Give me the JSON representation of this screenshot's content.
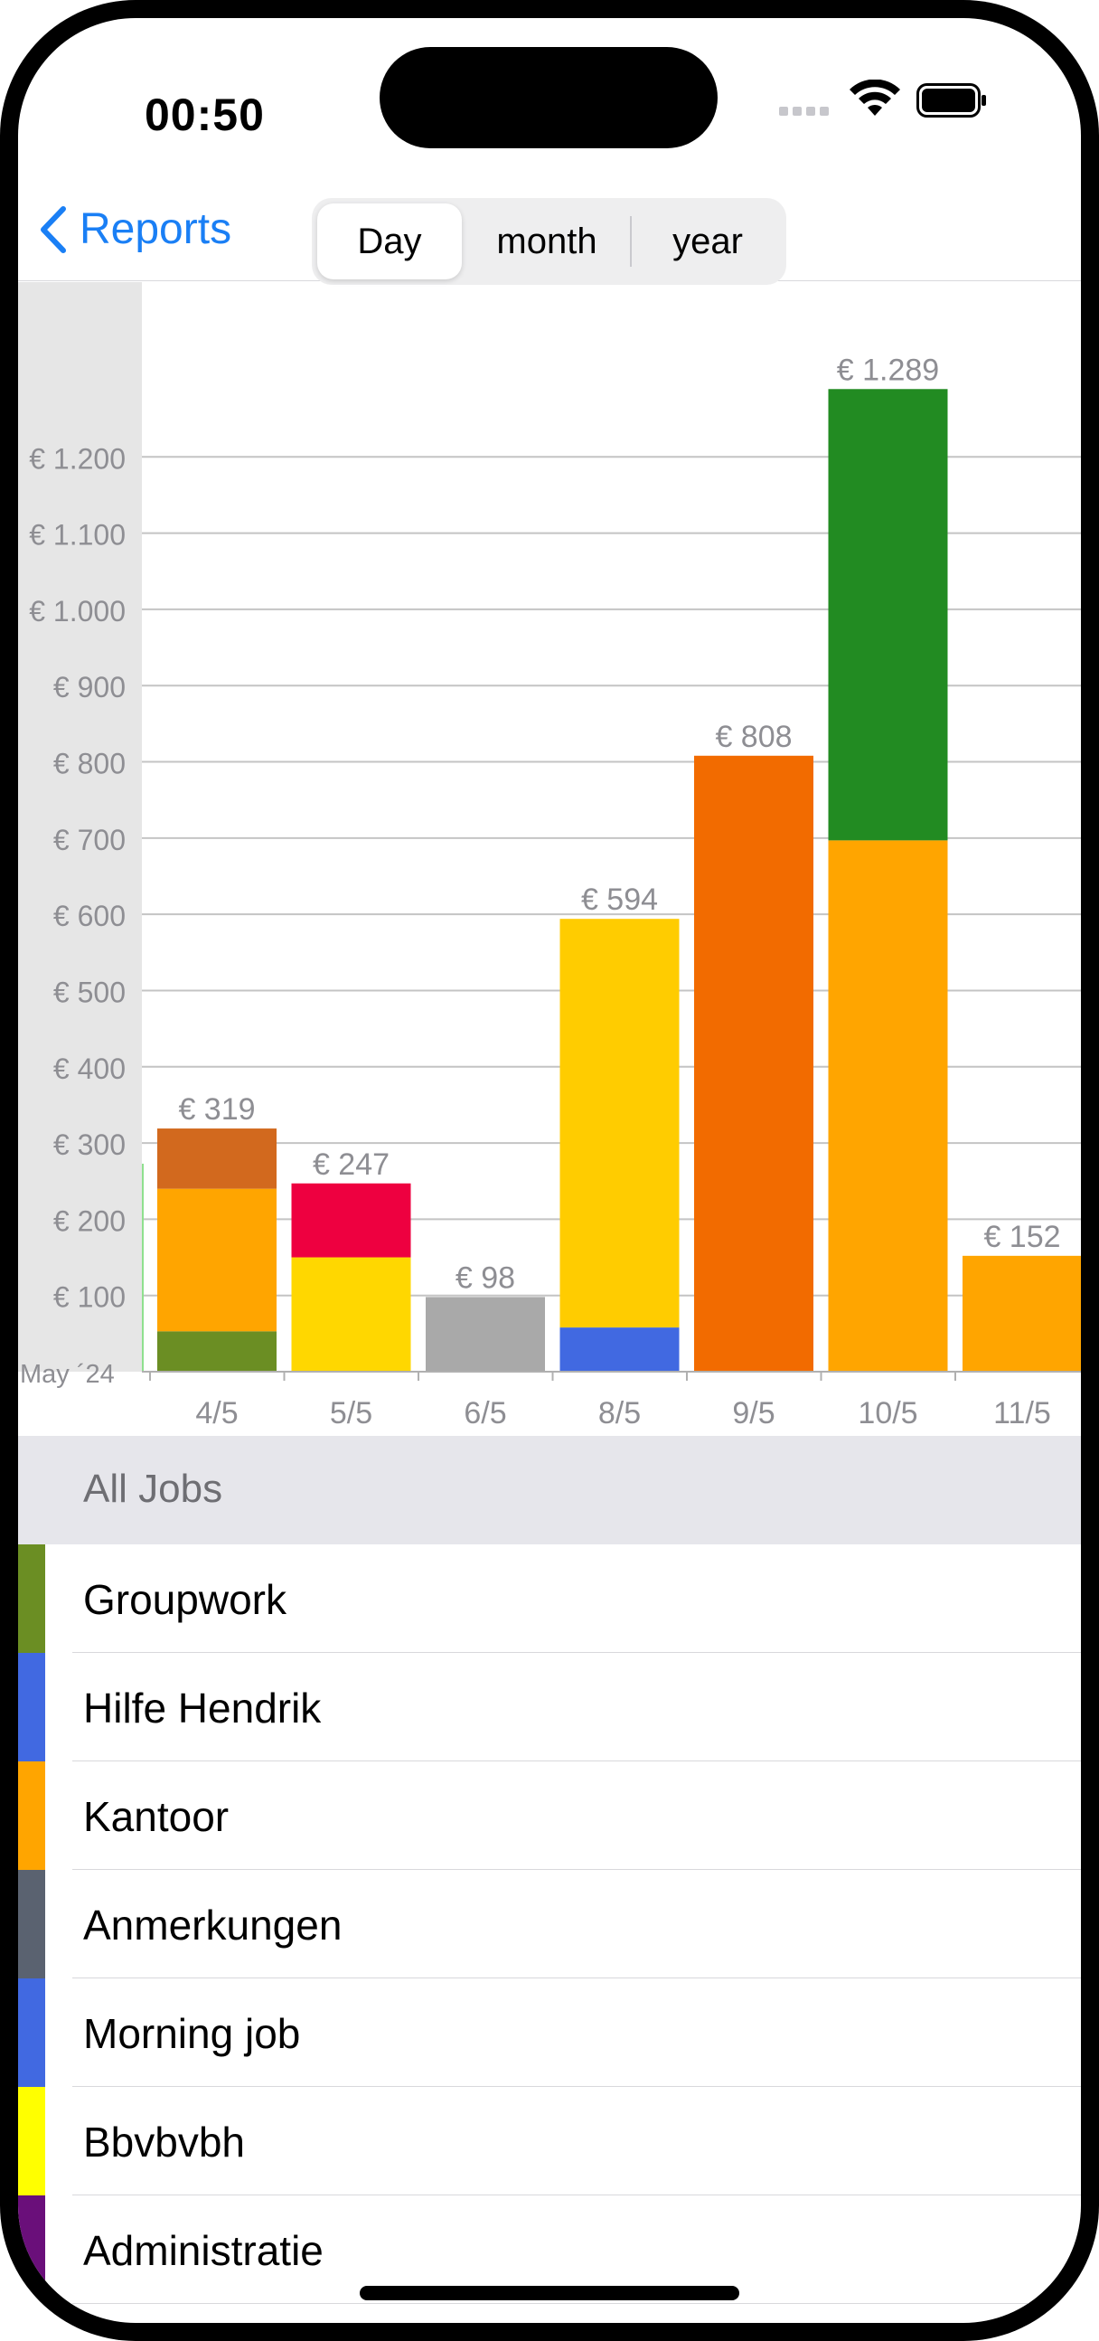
{
  "status_bar": {
    "time": "00:50"
  },
  "nav": {
    "back_label": "Reports",
    "segments": [
      {
        "label": "Day",
        "selected": true
      },
      {
        "label": "month",
        "selected": false
      },
      {
        "label": "year",
        "selected": false
      }
    ]
  },
  "chart_data": {
    "type": "bar",
    "stacked": true,
    "period_label": "May ´24",
    "y_tick_labels": [
      "€ 100",
      "€ 200",
      "€ 300",
      "€ 400",
      "€ 500",
      "€ 600",
      "€ 700",
      "€ 800",
      "€ 900",
      "€ 1.000",
      "€ 1.100",
      "€ 1.200"
    ],
    "ylim": [
      0,
      1300
    ],
    "grid": true,
    "categories": [
      "4/5",
      "5/5",
      "6/5",
      "8/5",
      "9/5",
      "10/5",
      "11/5"
    ],
    "totals_labels": [
      "€ 319",
      "€ 247",
      "€ 98",
      "€ 594",
      "€ 808",
      "€ 1.289",
      "€ 152"
    ],
    "bars": [
      {
        "total": 319,
        "segments": [
          {
            "value": 53,
            "color": "#6b8e23"
          },
          {
            "value": 187,
            "color": "#ffa500"
          },
          {
            "value": 79,
            "color": "#d2691e"
          }
        ]
      },
      {
        "total": 247,
        "segments": [
          {
            "value": 150,
            "color": "#ffd700"
          },
          {
            "value": 97,
            "color": "#ee0040"
          }
        ]
      },
      {
        "total": 98,
        "segments": [
          {
            "value": 98,
            "color": "#a9a9a9"
          }
        ]
      },
      {
        "total": 594,
        "segments": [
          {
            "value": 58,
            "color": "#4169e1"
          },
          {
            "value": 536,
            "color": "#ffcc00"
          }
        ]
      },
      {
        "total": 808,
        "segments": [
          {
            "value": 808,
            "color": "#f26b00"
          }
        ]
      },
      {
        "total": 1289,
        "segments": [
          {
            "value": 697,
            "color": "#ffa500"
          },
          {
            "value": 592,
            "color": "#228b22"
          }
        ]
      },
      {
        "total": 152,
        "segments": [
          {
            "value": 152,
            "color": "#ffa500"
          }
        ]
      }
    ]
  },
  "jobs": {
    "header": "All Jobs",
    "items": [
      {
        "name": "Groupwork",
        "color": "#6b8e23"
      },
      {
        "name": "Hilfe Hendrik",
        "color": "#4169e1"
      },
      {
        "name": "Kantoor",
        "color": "#ffa500"
      },
      {
        "name": "Anmerkungen",
        "color": "#5a6270"
      },
      {
        "name": "Morning job",
        "color": "#4169e1"
      },
      {
        "name": "Bbvbvbh",
        "color": "#ffff00"
      },
      {
        "name": "Administratie",
        "color": "#6a0f7a"
      }
    ]
  }
}
